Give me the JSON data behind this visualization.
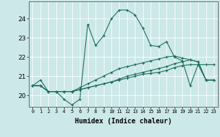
{
  "xlabel": "Humidex (Indice chaleur)",
  "bg_color": "#cce8e8",
  "grid_color": "#ffffff",
  "line_color": "#1a6b5a",
  "xlim": [
    -0.5,
    23.5
  ],
  "ylim": [
    19.4,
    24.9
  ],
  "yticks": [
    20,
    21,
    22,
    23,
    24
  ],
  "xticks": [
    0,
    1,
    2,
    3,
    4,
    5,
    6,
    7,
    8,
    9,
    10,
    11,
    12,
    13,
    14,
    15,
    16,
    17,
    18,
    19,
    20,
    21,
    22,
    23
  ],
  "series": [
    [
      20.5,
      20.8,
      20.2,
      20.2,
      19.8,
      19.5,
      19.8,
      23.7,
      22.6,
      23.1,
      24.0,
      24.45,
      24.45,
      24.2,
      23.5,
      22.6,
      22.55,
      22.8,
      22.0,
      21.8,
      20.5,
      21.6,
      20.8,
      20.8
    ],
    [
      20.5,
      20.5,
      20.2,
      20.2,
      20.2,
      20.2,
      20.3,
      20.4,
      20.5,
      20.6,
      20.7,
      20.8,
      20.9,
      21.0,
      21.1,
      21.15,
      21.2,
      21.3,
      21.45,
      21.55,
      21.6,
      21.6,
      21.6,
      21.6
    ],
    [
      20.5,
      20.5,
      20.2,
      20.2,
      20.2,
      20.2,
      20.3,
      20.4,
      20.5,
      20.6,
      20.7,
      20.85,
      21.0,
      21.1,
      21.2,
      21.3,
      21.4,
      21.5,
      21.65,
      21.75,
      21.85,
      21.75,
      20.8,
      20.8
    ],
    [
      20.5,
      20.5,
      20.2,
      20.2,
      20.2,
      20.2,
      20.4,
      20.6,
      20.8,
      21.0,
      21.2,
      21.4,
      21.5,
      21.6,
      21.7,
      21.8,
      21.9,
      22.0,
      22.05,
      21.95,
      21.85,
      21.75,
      20.8,
      20.8
    ]
  ]
}
